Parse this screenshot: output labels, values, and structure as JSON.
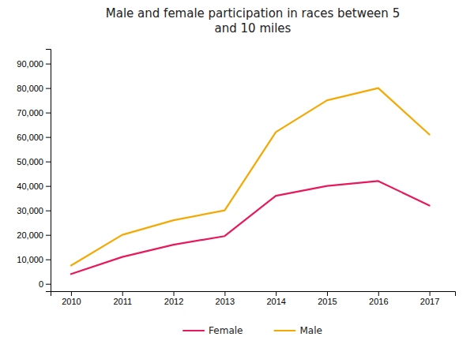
{
  "chart_data": {
    "type": "line",
    "title": "Male and female participation in races between 5\nand 10 miles",
    "x": [
      2010,
      2011,
      2012,
      2013,
      2014,
      2015,
      2016,
      2017
    ],
    "series": [
      {
        "name": "Female",
        "color": "#e8185a",
        "values": [
          4000,
          11000,
          16000,
          19500,
          36000,
          40000,
          42000,
          32000
        ]
      },
      {
        "name": "Male",
        "color": "#f5a800",
        "values": [
          7500,
          20000,
          26000,
          30000,
          62000,
          75000,
          80000,
          61000
        ]
      }
    ],
    "xlim": [
      2009.6,
      2017.5
    ],
    "xticks": [
      2010,
      2011,
      2012,
      2013,
      2014,
      2015,
      2016,
      2017
    ],
    "ylim": [
      -3000,
      96000
    ],
    "yticks": [
      0,
      {
        "value": 10000,
        "label": "10,000"
      },
      {
        "value": 20000,
        "label": "20,000"
      },
      {
        "value": 30000,
        "label": "30,000"
      },
      {
        "value": 40000,
        "label": "40,000"
      },
      {
        "value": 50000,
        "label": "50,000"
      },
      {
        "value": 60000,
        "label": "60,000"
      },
      {
        "value": 70000,
        "label": "70,000"
      },
      {
        "value": 80000,
        "label": "80,000"
      },
      {
        "value": 90000,
        "label": "90,000"
      }
    ],
    "grid": false,
    "legend": "bottom"
  }
}
